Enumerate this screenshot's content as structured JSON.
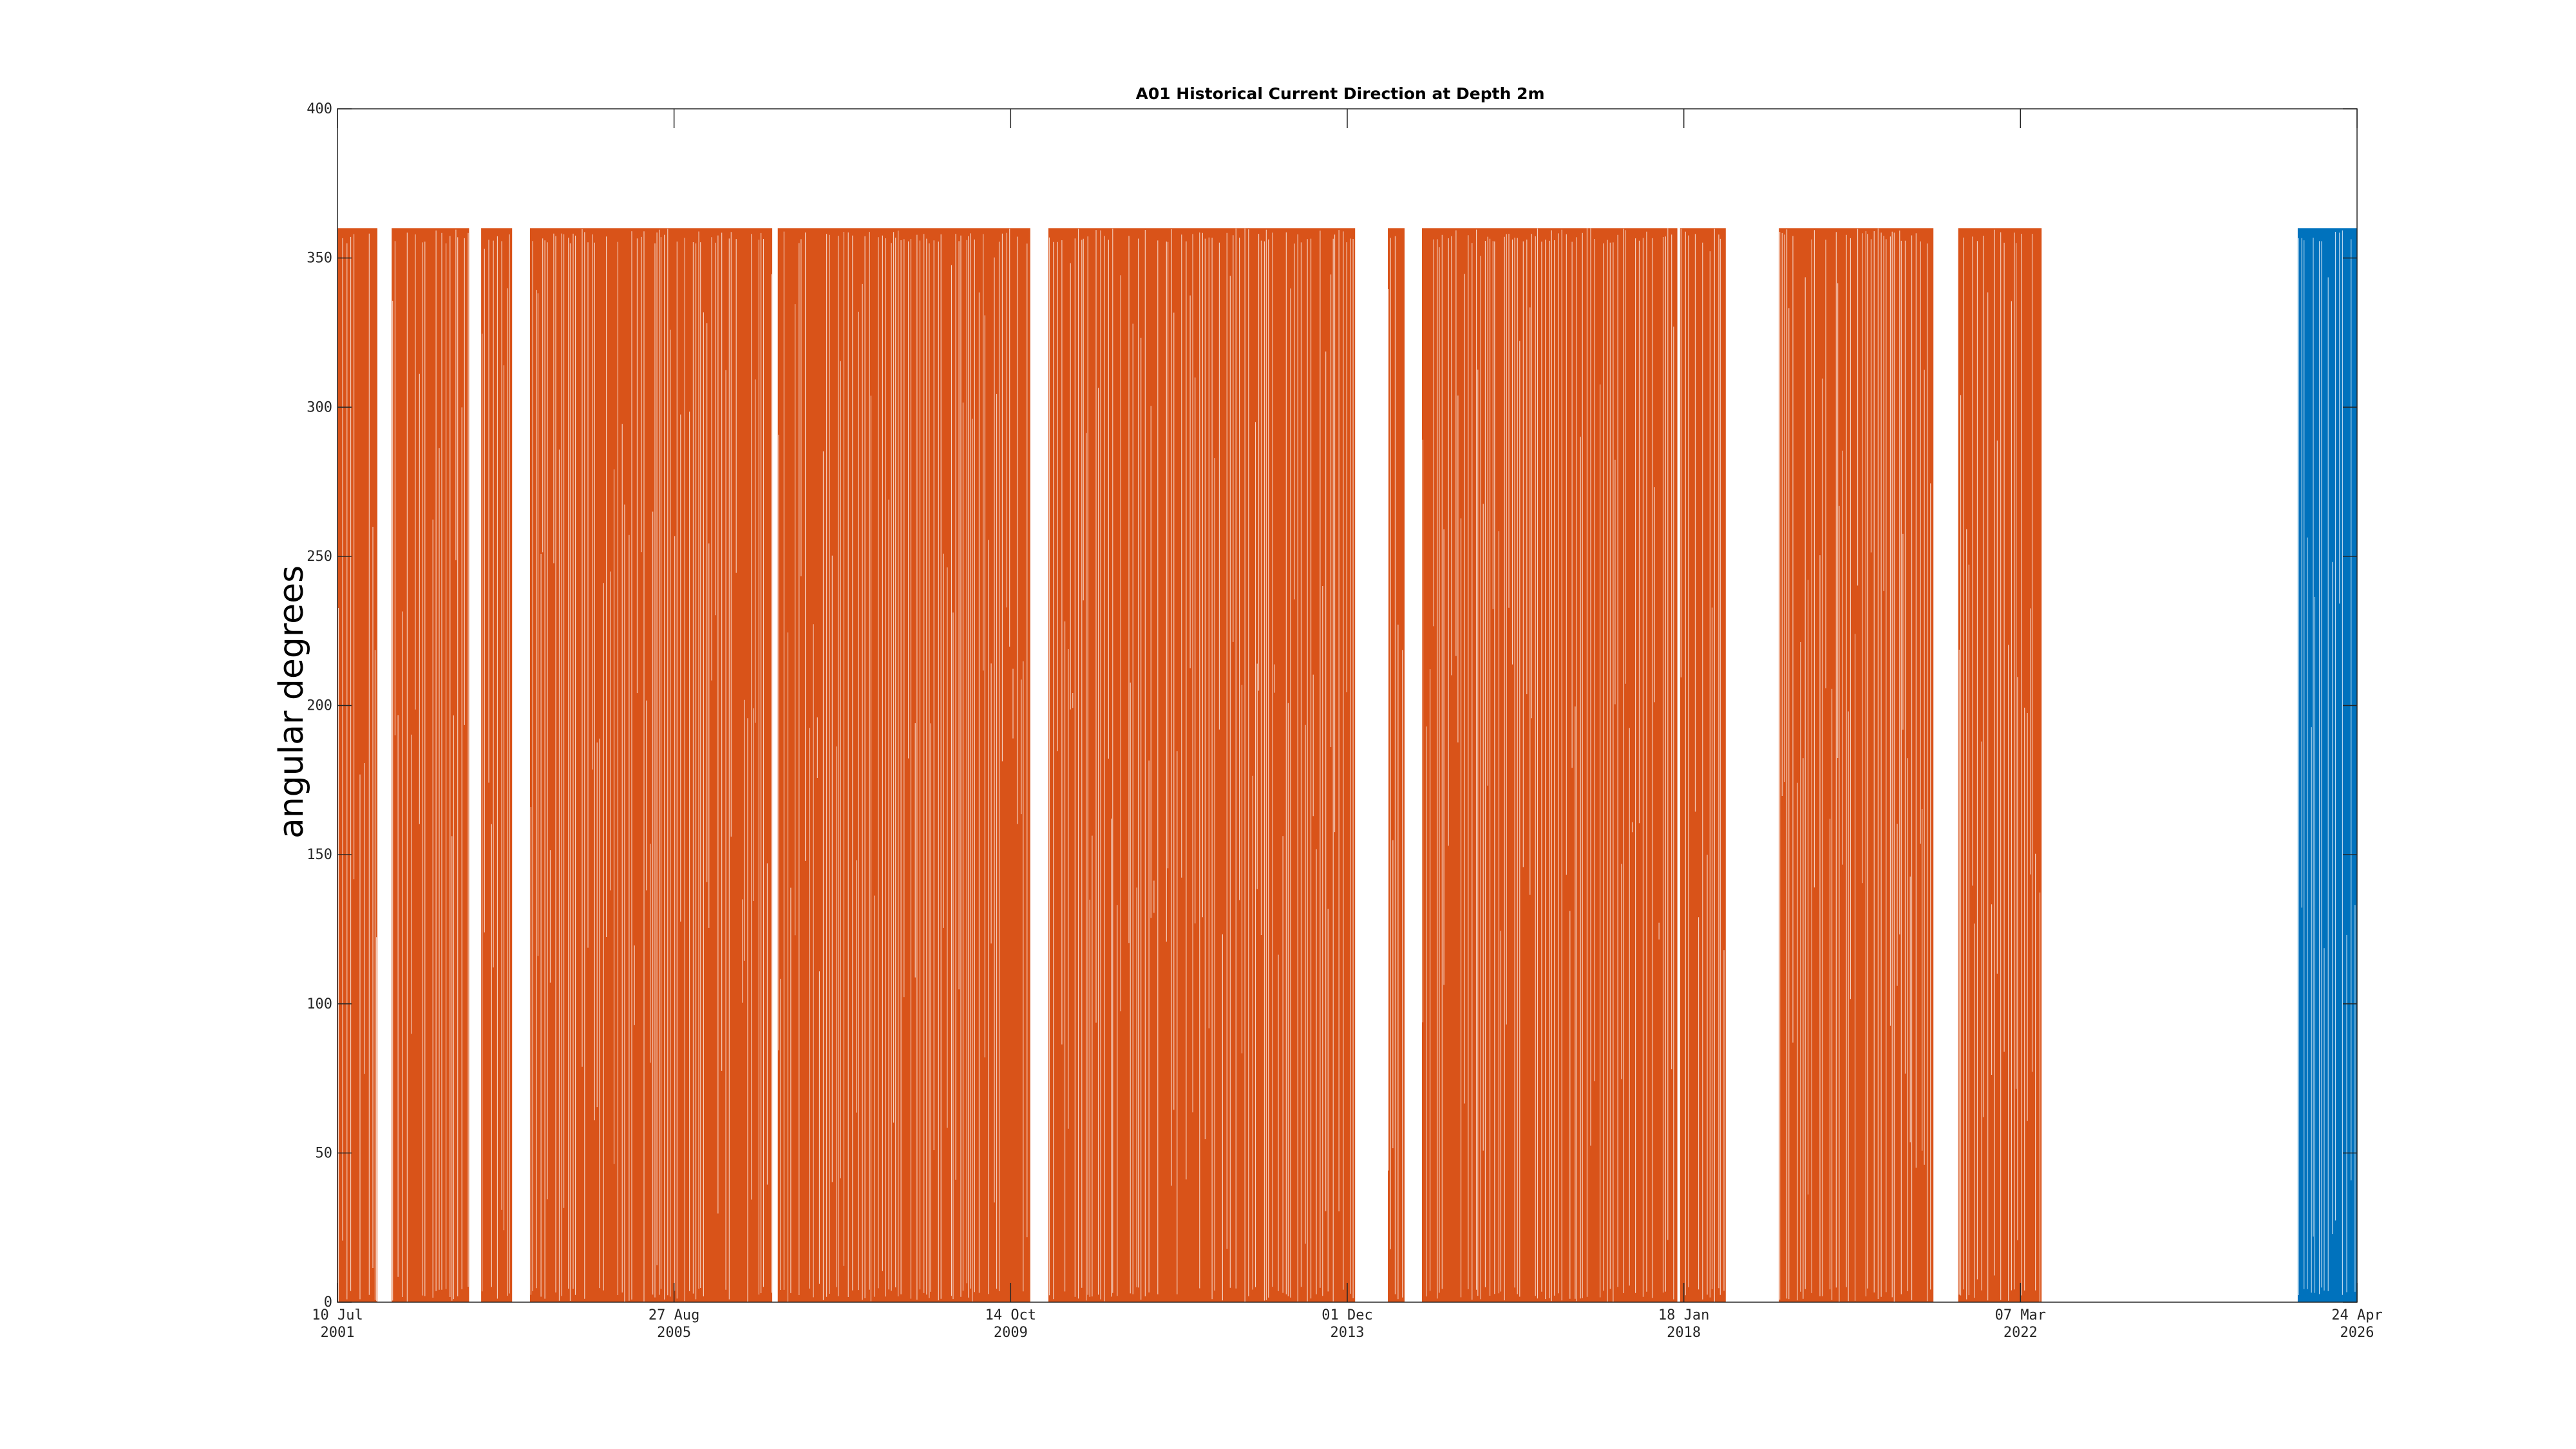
{
  "chart_data": {
    "type": "line",
    "title": "A01 Historical Current Direction at Depth 2m",
    "ylabel": "angular degrees",
    "xlabel": "",
    "ylim": [
      0,
      400
    ],
    "xlim": [
      "2001-07-10",
      "2026-04-24"
    ],
    "yticks": [
      "0",
      "50",
      "100",
      "150",
      "200",
      "250",
      "300",
      "350",
      "400"
    ],
    "xticks": [
      {
        "date": "2001-07-10",
        "line1": "10 Jul",
        "line2": "2001"
      },
      {
        "date": "2005-08-27",
        "line1": "27 Aug",
        "line2": "2005"
      },
      {
        "date": "2009-10-14",
        "line1": "14 Oct",
        "line2": "2009"
      },
      {
        "date": "2013-12-01",
        "line1": "01 Dec",
        "line2": "2013"
      },
      {
        "date": "2018-01-18",
        "line1": "18 Jan",
        "line2": "2018"
      },
      {
        "date": "2022-03-07",
        "line1": "07 Mar",
        "line2": "2022"
      },
      {
        "date": "2026-04-24",
        "line1": "24 Apr",
        "line2": "2026"
      }
    ],
    "grid": false,
    "series": [
      {
        "color": "#D95319",
        "y_range": [
          0,
          360
        ],
        "data_segments": [
          [
            "2001-07-10",
            "2002-01-05"
          ],
          [
            "2002-03-10",
            "2003-02-20"
          ],
          [
            "2003-04-15",
            "2003-09-01"
          ],
          [
            "2003-11-20",
            "2006-11-10"
          ],
          [
            "2006-12-05",
            "2010-01-10"
          ],
          [
            "2010-04-01",
            "2014-01-05"
          ],
          [
            "2014-06-01",
            "2014-08-15"
          ],
          [
            "2014-11-01",
            "2017-12-20"
          ],
          [
            "2018-01-01",
            "2018-07-25"
          ],
          [
            "2019-03-20",
            "2021-02-10"
          ],
          [
            "2021-06-01",
            "2022-06-10"
          ]
        ]
      },
      {
        "color": "#0072BD",
        "y_range": [
          0,
          360
        ],
        "data_segments": [
          [
            "2025-08-01",
            "2026-04-24"
          ]
        ]
      }
    ]
  }
}
